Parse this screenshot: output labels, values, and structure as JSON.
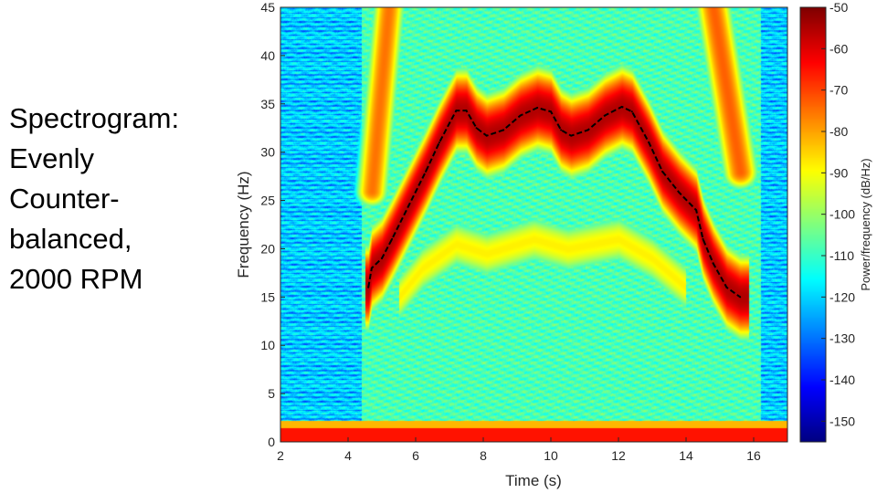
{
  "slide": {
    "title_lines": [
      "Spectrogram:",
      "Evenly",
      "Counter-",
      "balanced,",
      "2000 RPM"
    ]
  },
  "chart_data": {
    "type": "heatmap",
    "title": "",
    "xlabel": "Time (s)",
    "ylabel": "Frequency (Hz)",
    "xlim": [
      2,
      17
    ],
    "ylim": [
      0,
      45
    ],
    "xticks": [
      2,
      4,
      6,
      8,
      10,
      12,
      14,
      16
    ],
    "yticks": [
      0,
      5,
      10,
      15,
      20,
      25,
      30,
      35,
      40,
      45
    ],
    "colormap": "jet",
    "colorbar": {
      "label": "Power/frequency (dB/Hz)",
      "clim": [
        -155,
        -50
      ],
      "ticks": [
        -50,
        -60,
        -70,
        -80,
        -90,
        -100,
        -110,
        -120,
        -130,
        -140,
        -150
      ]
    },
    "background_level_db": -112,
    "low_frequency_band": {
      "freq_max": 1.5,
      "level_db": -65
    },
    "dominant_ridge": {
      "level_db": -55,
      "marker_color": "#000000",
      "points": [
        [
          4.6,
          16
        ],
        [
          4.7,
          18
        ],
        [
          5.0,
          19
        ],
        [
          5.3,
          21
        ],
        [
          5.8,
          24.5
        ],
        [
          6.3,
          28
        ],
        [
          6.7,
          31
        ],
        [
          7.0,
          33
        ],
        [
          7.2,
          34.3
        ],
        [
          7.5,
          34.3
        ],
        [
          7.8,
          32.5
        ],
        [
          8.1,
          31.7
        ],
        [
          8.6,
          32.3
        ],
        [
          9.1,
          33.8
        ],
        [
          9.6,
          34.6
        ],
        [
          10.0,
          34.2
        ],
        [
          10.3,
          32.3
        ],
        [
          10.6,
          31.7
        ],
        [
          11.1,
          32.3
        ],
        [
          11.6,
          33.8
        ],
        [
          12.1,
          34.7
        ],
        [
          12.4,
          34.2
        ],
        [
          12.9,
          31
        ],
        [
          13.3,
          28
        ],
        [
          13.8,
          25.8
        ],
        [
          14.3,
          24
        ],
        [
          14.5,
          21
        ],
        [
          14.8,
          18.5
        ],
        [
          15.2,
          16
        ],
        [
          15.6,
          15
        ]
      ]
    },
    "secondary_band": {
      "level_db": -88,
      "points": [
        [
          5.5,
          15
        ],
        [
          6.2,
          18
        ],
        [
          7.2,
          20.5
        ],
        [
          8.1,
          19.5
        ],
        [
          9.5,
          21
        ],
        [
          10.5,
          20
        ],
        [
          12.0,
          21
        ],
        [
          13.0,
          19
        ],
        [
          14.0,
          16
        ]
      ]
    }
  }
}
